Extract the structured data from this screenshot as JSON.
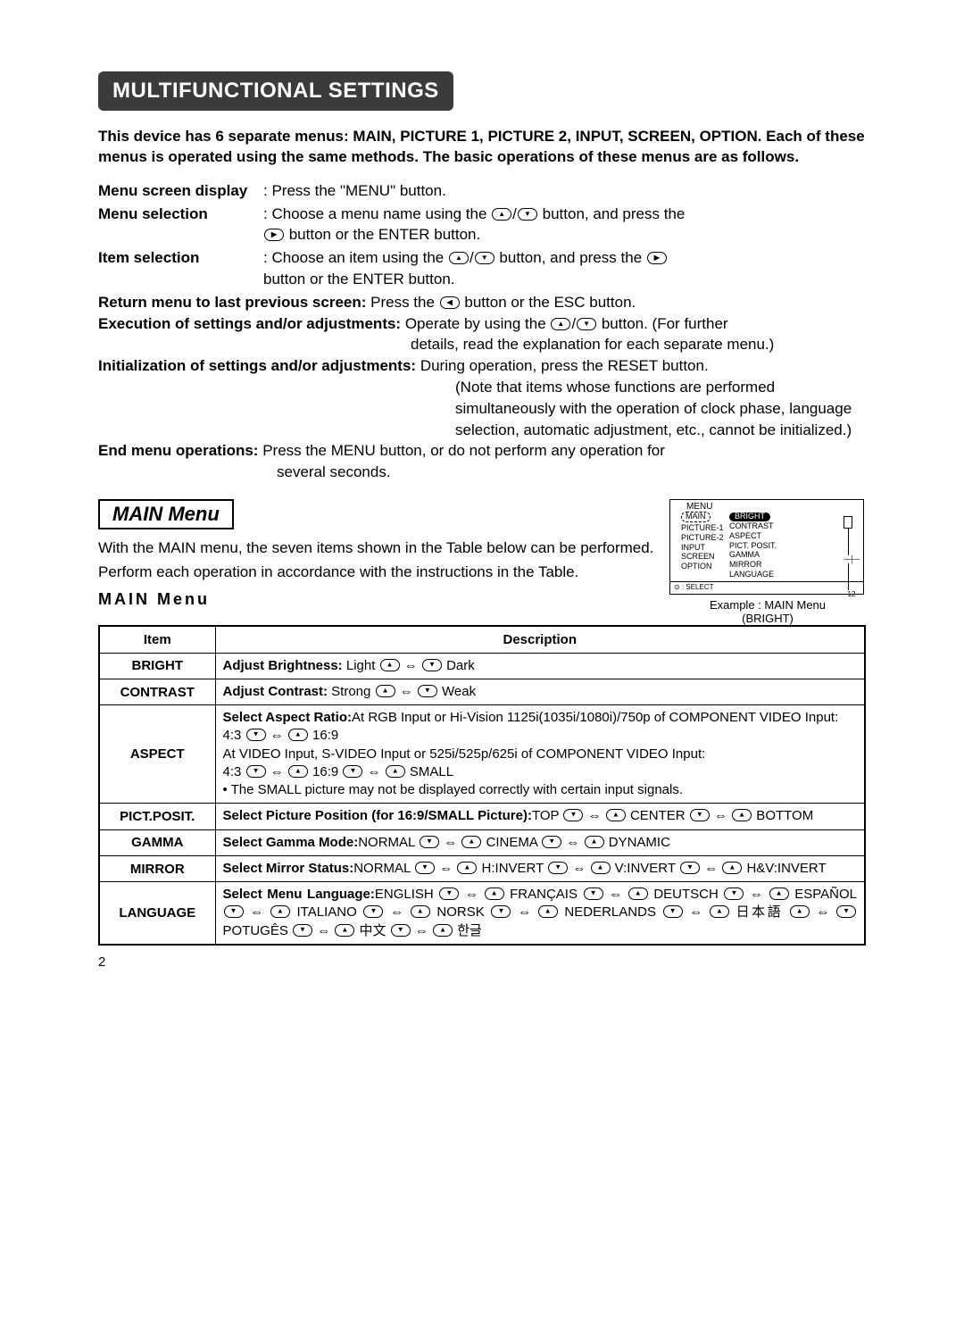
{
  "title": "MULTIFUNCTIONAL SETTINGS",
  "intro": "This device has 6 separate menus: MAIN, PICTURE 1, PICTURE 2, INPUT, SCREEN, OPTION. Each of these menus is operated using the same methods. The basic operations of these menus are as follows.",
  "ops": {
    "menu_screen_label": "Menu screen display",
    "menu_screen_text": ": Press the \"MENU\" button.",
    "menu_selection_label": "Menu selection",
    "menu_selection_text1": ": Choose a menu name using the ",
    "menu_selection_text2": " button, and press the ",
    "menu_selection_text3": " button or the ENTER button.",
    "item_selection_label": "Item selection",
    "item_selection_text1": ": Choose an item using the ",
    "item_selection_text2": " button, and press the ",
    "item_selection_text3": " button or the ENTER button.",
    "return_label": "Return menu to last previous screen:",
    "return_text": " Press the ",
    "return_text2": " button or the ESC button.",
    "exec_label": "Execution of settings and/or adjustments:",
    "exec_text1": " Operate by using the ",
    "exec_text2": " button. (For further",
    "exec_text3": "details, read the explanation for each separate menu.)",
    "init_label": "Initialization of settings and/or adjustments:",
    "init_text1": " During operation, press the RESET button.",
    "init_text2": "(Note that items whose functions are performed simultaneously with the operation of clock phase, language selection, automatic adjustment, etc., cannot be initialized.)",
    "end_label": "End menu operations:",
    "end_text1": " Press the MENU button, or do not perform any operation for",
    "end_text2": "several seconds."
  },
  "section": {
    "heading": "MAIN Menu",
    "p1": "With the MAIN menu, the seven items shown in the Table below can be performed.",
    "p2": "Perform each operation in accordance with the instructions in the Table.",
    "subhead": "MAIN Menu"
  },
  "osd": {
    "title": "MENU",
    "left": [
      "MAIN",
      "PICTURE-1",
      "PICTURE-2",
      "INPUT",
      "SCREEN",
      "OPTION"
    ],
    "mid_sel": "BRIGHT",
    "mid": [
      "CONTRAST",
      "ASPECT",
      "PICT. POSIT.",
      "GAMMA",
      "MIRROR",
      "LANGUAGE"
    ],
    "num": "12",
    "footer": "⊙ : SELECT",
    "caption1": "Example : MAIN Menu",
    "caption2": "(BRIGHT)"
  },
  "table": {
    "head_item": "Item",
    "head_desc": "Description",
    "rows": [
      {
        "item": "BRIGHT",
        "title": "Adjust Brightness:",
        "body": "  Light ⓐ ⇔ ⓓ Dark"
      },
      {
        "item": "CONTRAST",
        "title": "Adjust Contrast:",
        "body": "  Strong ⓐ ⇔ ⓓ Weak"
      },
      {
        "item": "ASPECT",
        "title": "Select Aspect Ratio:",
        "body": "At RGB Input or Hi-Vision 1125i(1035i/1080i)/750p of COMPONENT VIDEO Input:\n4:3 ⓓ ⇔ ⓐ 16:9\nAt VIDEO Input, S-VIDEO Input or 525i/525p/625i of COMPONENT VIDEO Input:\n4:3 ⓓ ⇔ ⓐ 16:9 ⓓ ⇔ ⓐ SMALL\n•  The SMALL picture may not be displayed correctly with certain input signals."
      },
      {
        "item": "PICT.POSIT.",
        "title": "Select Picture Position (for 16:9/SMALL Picture):",
        "body": "TOP ⓓ ⇔ ⓐ CENTER ⓓ ⇔ ⓐ BOTTOM"
      },
      {
        "item": "GAMMA",
        "title": "Select Gamma Mode:",
        "body": "NORMAL ⓓ ⇔ ⓐ CINEMA ⓓ ⇔ ⓐ DYNAMIC"
      },
      {
        "item": "MIRROR",
        "title": "Select Mirror Status:",
        "body": "NORMAL ⓓ ⇔ ⓐ H:INVERT ⓓ ⇔ ⓐ V:INVERT ⓓ ⇔ ⓐ H&V:INVERT"
      },
      {
        "item": "LANGUAGE",
        "title": "Select Menu Language:",
        "body": "ENGLISH ⓓ ⇔ ⓐ FRANÇAIS ⓓ ⇔ ⓐ DEUTSCH ⓓ ⇔ ⓐ ESPAÑOL ⓓ ⇔ ⓐ ITALIANO ⓓ ⇔ ⓐ NORSK ⓓ ⇔ ⓐ NEDERLANDS ⓓ ⇔ ⓐ 日本語 ⓐ ⇔ ⓓ POTUGÊS ⓓ ⇔ ⓐ 中文 ⓓ ⇔ ⓐ 한글"
      }
    ]
  },
  "pagenum": "2"
}
